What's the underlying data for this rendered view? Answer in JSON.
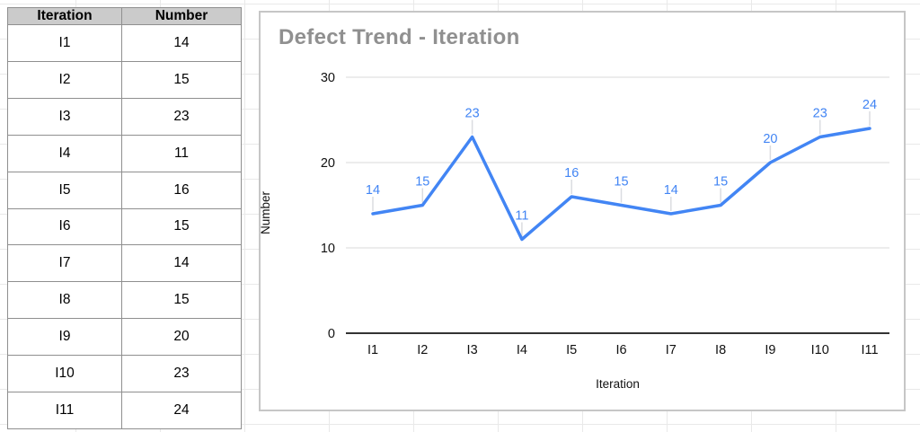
{
  "table": {
    "headers": [
      "Iteration",
      "Number"
    ],
    "rows": [
      [
        "I1",
        "14"
      ],
      [
        "I2",
        "15"
      ],
      [
        "I3",
        "23"
      ],
      [
        "I4",
        "11"
      ],
      [
        "I5",
        "16"
      ],
      [
        "I6",
        "15"
      ],
      [
        "I7",
        "14"
      ],
      [
        "I8",
        "15"
      ],
      [
        "I9",
        "20"
      ],
      [
        "I10",
        "23"
      ],
      [
        "I11",
        "24"
      ]
    ]
  },
  "chart_data": {
    "type": "line",
    "title": "Defect Trend - Iteration",
    "categories": [
      "I1",
      "I2",
      "I3",
      "I4",
      "I5",
      "I6",
      "I7",
      "I8",
      "I9",
      "I10",
      "I11"
    ],
    "values": [
      14,
      15,
      23,
      11,
      16,
      15,
      14,
      15,
      20,
      23,
      24
    ],
    "xlabel": "Iteration",
    "ylabel": "Number",
    "ylim": [
      0,
      30
    ],
    "yticks": [
      0,
      10,
      20,
      30
    ],
    "grid": true,
    "legend": "none",
    "line_color": "#4285f4",
    "label_color": "#4285f4",
    "title_color": "#909090",
    "axis_text_color": "#111111",
    "gridline_color": "#e6e6e6",
    "baseline_color": "#333333",
    "callout_color": "#dadce0"
  },
  "colors": {
    "table_header_bg": "#cbcbcb",
    "table_border": "#8f8f8f",
    "spreadsheet_gridline": "#e9e9e9",
    "chart_card_border": "#c6c6c6"
  }
}
